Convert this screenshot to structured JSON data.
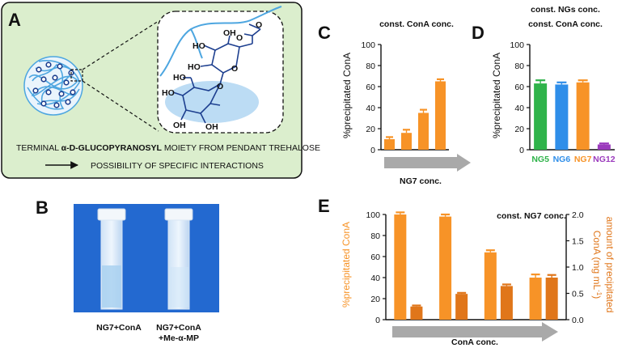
{
  "panels": {
    "A": {
      "letter": "A",
      "line1_pre": "TERMINAL ",
      "line1_bold": "α-D-GLUCOPYRANOSYL",
      "line1_post": " MOIETY FROM PENDANT TREHALOSE",
      "line2": "POSSIBILITY OF SPECIFIC INTERACTIONS",
      "atoms": [
        "O",
        "O",
        "HO",
        "HO",
        "OH",
        "O",
        "O",
        "HO",
        "HO",
        "OH",
        "OH"
      ]
    },
    "B": {
      "letter": "B",
      "label_left": "NG7+ConA",
      "label_right_1": "NG7+ConA",
      "label_right_2": "+Me-α-MP"
    }
  },
  "chart_data": [
    {
      "id": "C",
      "letter": "C",
      "type": "bar",
      "title": "const. ConA conc.",
      "ylabel": "%precipitated ConA",
      "xlabel": "NG7 conc.",
      "ylim": [
        0,
        100
      ],
      "yticks": [
        0,
        20,
        40,
        60,
        80,
        100
      ],
      "values": [
        10,
        16,
        35,
        65
      ],
      "errors": [
        2,
        3,
        3,
        2
      ],
      "color": "#f79327"
    },
    {
      "id": "D",
      "letter": "D",
      "type": "bar",
      "title_1": "const. NGs conc.",
      "title_2": "const. ConA conc.",
      "ylabel": "%precipitated ConA",
      "ylim": [
        0,
        100
      ],
      "yticks": [
        0,
        20,
        40,
        60,
        80,
        100
      ],
      "categories": [
        "NG5",
        "NG6",
        "NG7",
        "NG12"
      ],
      "values": [
        63,
        62,
        64,
        5
      ],
      "errors": [
        3,
        2,
        2,
        1
      ],
      "colors": [
        "#2fb34a",
        "#2f8ee9",
        "#f79327",
        "#9b3bbd"
      ]
    },
    {
      "id": "E",
      "letter": "E",
      "type": "bar",
      "title": "const. NG7 conc.",
      "xlabel": "ConA conc.",
      "ylabel_left": "%precipitated ConA",
      "ylabel_right_1": "amount of precipitated",
      "ylabel_right_2": "ConA (mg mL",
      "ylabel_right_sup": "-1",
      "ylabel_right_3": ")",
      "ylim_left": [
        0,
        100
      ],
      "yticks_left": [
        0,
        20,
        40,
        60,
        80,
        100
      ],
      "ylim_right": [
        0,
        2.0
      ],
      "yticks_right": [
        "0.0",
        "0.5",
        "1.0",
        "1.5",
        "2.0"
      ],
      "series": [
        {
          "axis": "left",
          "color": "#f79327",
          "values": [
            100,
            98,
            64,
            40
          ],
          "errors": [
            2,
            2,
            2,
            3
          ]
        },
        {
          "axis": "right",
          "color": "#e0761a",
          "values": [
            0.25,
            0.49,
            0.64,
            0.8
          ],
          "errors": [
            0.02,
            0.02,
            0.03,
            0.05
          ]
        }
      ]
    }
  ]
}
